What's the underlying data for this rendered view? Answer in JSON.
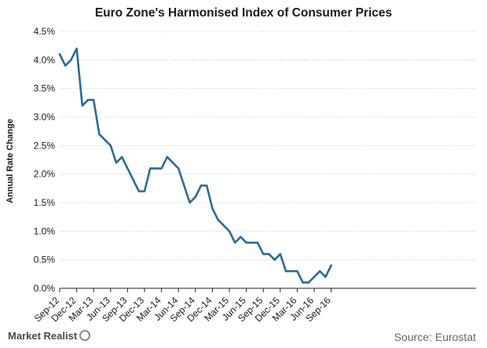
{
  "chart_data": {
    "type": "line",
    "title": "Euro Zone's Harmonised Index of Consumer Prices",
    "ylabel": "Annual Rate Change",
    "xlabel": "",
    "ylim": [
      0,
      4.5
    ],
    "yticks": [
      "0.0%",
      "0.5%",
      "1.0%",
      "1.5%",
      "2.0%",
      "2.5%",
      "3.0%",
      "3.5%",
      "4.0%",
      "4.5%"
    ],
    "xtick_labels": [
      "Sep-12",
      "Dec-12",
      "Mar-13",
      "Jun-13",
      "Sep-13",
      "Dec-13",
      "Mar-14",
      "Jun-14",
      "Sep-14",
      "Dec-14",
      "Mar-15",
      "Jun-15",
      "Sep-15",
      "Dec-15",
      "Mar-16",
      "Jun-16",
      "Sep-16"
    ],
    "grid": true,
    "color": "#2a6b96",
    "x": [
      "Sep-12",
      "Oct-12",
      "Nov-12",
      "Dec-12",
      "Jan-13",
      "Feb-13",
      "Mar-13",
      "Apr-13",
      "May-13",
      "Jun-13",
      "Jul-13",
      "Aug-13",
      "Sep-13",
      "Oct-13",
      "Nov-13",
      "Dec-13",
      "Jan-14",
      "Feb-14",
      "Mar-14",
      "Apr-14",
      "May-14",
      "Jun-14",
      "Jul-14",
      "Aug-14",
      "Sep-14",
      "Oct-14",
      "Nov-14",
      "Dec-14",
      "Jan-15",
      "Feb-15",
      "Mar-15",
      "Apr-15",
      "May-15",
      "Jun-15",
      "Jul-15",
      "Aug-15",
      "Sep-15",
      "Oct-15",
      "Nov-15",
      "Dec-15",
      "Jan-16",
      "Feb-16",
      "Mar-16",
      "Apr-16",
      "May-16",
      "Jun-16",
      "Jul-16",
      "Aug-16",
      "Sep-16"
    ],
    "values": [
      4.1,
      3.9,
      4.0,
      4.2,
      3.2,
      3.3,
      3.3,
      2.7,
      2.6,
      2.5,
      2.2,
      2.3,
      2.1,
      1.9,
      1.7,
      1.7,
      2.1,
      2.1,
      2.1,
      2.3,
      2.2,
      2.1,
      1.8,
      1.5,
      1.6,
      1.8,
      1.8,
      1.4,
      1.2,
      1.1,
      1.0,
      0.8,
      0.9,
      0.8,
      0.8,
      0.8,
      0.6,
      0.6,
      0.5,
      0.6,
      0.3,
      0.3,
      0.3,
      0.1,
      0.1,
      0.2,
      0.3,
      0.2,
      0.4
    ]
  },
  "footer": {
    "brand": "Market Realist",
    "source": "Source: Eurostat"
  }
}
